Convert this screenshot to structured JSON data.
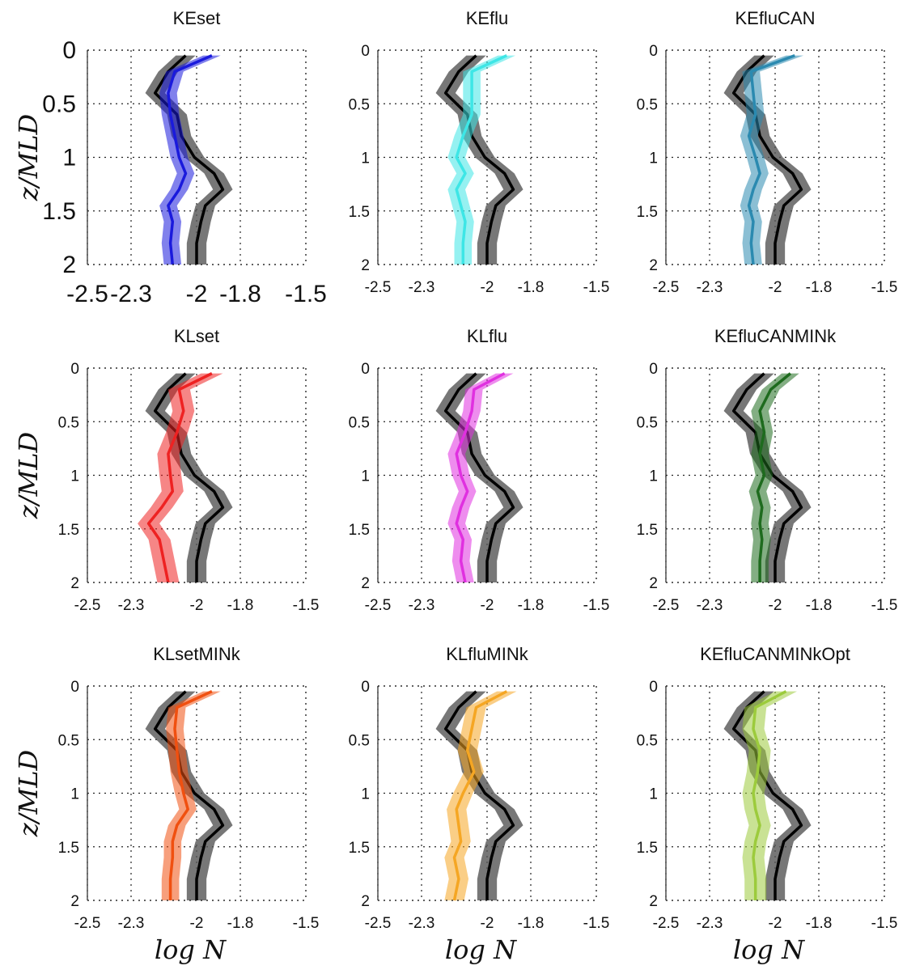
{
  "figure": {
    "ylabel": "z/MLD",
    "xlabel": "log N"
  },
  "chart_data": [
    {
      "type": "line",
      "title": "KEset",
      "xlabel": "",
      "ylabel": "z/MLD",
      "xlim": [
        -2.5,
        -1.5
      ],
      "ylim": [
        0,
        2
      ],
      "y_reversed": true,
      "grid": true,
      "xticks": [
        "-2.5",
        "-2.3",
        "-2",
        "-1.8",
        "-1.5"
      ],
      "yticks": [
        "0",
        "0.5",
        "1",
        "1.5",
        "2"
      ],
      "y": [
        0.05,
        0.2,
        0.4,
        0.6,
        0.8,
        1.0,
        1.15,
        1.3,
        1.45,
        1.6,
        1.8,
        2.0
      ],
      "series": [
        {
          "x": [
            -1.93,
            -2.1,
            -2.13,
            -2.12,
            -2.1,
            -2.08,
            -2.05,
            -2.08,
            -2.13,
            -2.11,
            -2.12,
            -2.11
          ],
          "spread": 0.04,
          "color": "#1a1adc"
        },
        {
          "x": [
            -2.05,
            -2.13,
            -2.19,
            -2.09,
            -2.07,
            -2.01,
            -1.92,
            -1.88,
            -1.96,
            -1.98,
            -2.0,
            -2.0
          ],
          "spread": 0.045,
          "color": "#000000"
        }
      ]
    },
    {
      "type": "line",
      "title": "KEflu",
      "xlabel": "",
      "ylabel": "",
      "xlim": [
        -2.5,
        -1.5
      ],
      "ylim": [
        0,
        2
      ],
      "y_reversed": true,
      "grid": true,
      "xticks": [
        "-2.5",
        "-2.3",
        "-2",
        "-1.8",
        "-1.5"
      ],
      "yticks": [
        "0",
        "0.5",
        "1",
        "1.5",
        "2"
      ],
      "y": [
        0.05,
        0.2,
        0.4,
        0.6,
        0.8,
        1.0,
        1.15,
        1.3,
        1.45,
        1.6,
        1.8,
        2.0
      ],
      "series": [
        {
          "x": [
            -1.91,
            -2.07,
            -2.07,
            -2.07,
            -2.11,
            -2.14,
            -2.1,
            -2.14,
            -2.12,
            -2.1,
            -2.11,
            -2.11
          ],
          "spread": 0.04,
          "color": "#3ee6e6"
        },
        {
          "x": [
            -2.05,
            -2.13,
            -2.19,
            -2.09,
            -2.07,
            -2.01,
            -1.92,
            -1.88,
            -1.96,
            -1.98,
            -2.0,
            -2.0
          ],
          "spread": 0.045,
          "color": "#000000"
        }
      ]
    },
    {
      "type": "line",
      "title": "KEfluCAN",
      "xlabel": "",
      "ylabel": "",
      "xlim": [
        -2.5,
        -1.5
      ],
      "ylim": [
        0,
        2
      ],
      "y_reversed": true,
      "grid": true,
      "xticks": [
        "-2.5",
        "-2.3",
        "-2",
        "-1.8",
        "-1.5"
      ],
      "yticks": [
        "0",
        "0.5",
        "1",
        "1.5",
        "2"
      ],
      "y": [
        0.05,
        0.2,
        0.4,
        0.6,
        0.8,
        1.0,
        1.15,
        1.3,
        1.45,
        1.6,
        1.8,
        2.0
      ],
      "series": [
        {
          "x": [
            -1.91,
            -2.11,
            -2.1,
            -2.09,
            -2.12,
            -2.09,
            -2.07,
            -2.1,
            -2.12,
            -2.1,
            -2.11,
            -2.1
          ],
          "spread": 0.04,
          "color": "#2b8ab0"
        },
        {
          "x": [
            -2.05,
            -2.13,
            -2.19,
            -2.09,
            -2.07,
            -2.01,
            -1.92,
            -1.88,
            -1.96,
            -1.98,
            -2.0,
            -2.0
          ],
          "spread": 0.045,
          "color": "#000000"
        }
      ]
    },
    {
      "type": "line",
      "title": "KLset",
      "xlabel": "",
      "ylabel": "z/MLD",
      "xlim": [
        -2.5,
        -1.5
      ],
      "ylim": [
        0,
        2
      ],
      "y_reversed": true,
      "grid": true,
      "xticks": [
        "-2.5",
        "-2.3",
        "-2",
        "-1.8",
        "-1.5"
      ],
      "yticks": [
        "0",
        "0.5",
        "1",
        "1.5",
        "2"
      ],
      "y": [
        0.05,
        0.2,
        0.4,
        0.6,
        0.8,
        1.0,
        1.15,
        1.3,
        1.45,
        1.6,
        1.8,
        2.0
      ],
      "series": [
        {
          "x": [
            -1.93,
            -2.08,
            -2.06,
            -2.09,
            -2.13,
            -2.12,
            -2.11,
            -2.16,
            -2.22,
            -2.17,
            -2.15,
            -2.13
          ],
          "spread": 0.05,
          "color": "#ee2222"
        },
        {
          "x": [
            -2.05,
            -2.13,
            -2.19,
            -2.09,
            -2.07,
            -2.01,
            -1.92,
            -1.88,
            -1.96,
            -1.98,
            -2.0,
            -2.0
          ],
          "spread": 0.045,
          "color": "#000000"
        }
      ]
    },
    {
      "type": "line",
      "title": "KLflu",
      "xlabel": "",
      "ylabel": "",
      "xlim": [
        -2.5,
        -1.5
      ],
      "ylim": [
        0,
        2
      ],
      "y_reversed": true,
      "grid": true,
      "xticks": [
        "-2.5",
        "-2.3",
        "-2",
        "-1.8",
        "-1.5"
      ],
      "yticks": [
        "0",
        "0.5",
        "1",
        "1.5",
        "2"
      ],
      "y": [
        0.05,
        0.2,
        0.4,
        0.6,
        0.8,
        1.0,
        1.15,
        1.3,
        1.45,
        1.6,
        1.8,
        2.0
      ],
      "series": [
        {
          "x": [
            -1.92,
            -2.06,
            -2.07,
            -2.1,
            -2.14,
            -2.12,
            -2.09,
            -2.12,
            -2.14,
            -2.11,
            -2.12,
            -2.1
          ],
          "spread": 0.04,
          "color": "#e030e0"
        },
        {
          "x": [
            -2.05,
            -2.13,
            -2.19,
            -2.09,
            -2.07,
            -2.01,
            -1.92,
            -1.88,
            -1.96,
            -1.98,
            -2.0,
            -2.0
          ],
          "spread": 0.045,
          "color": "#000000"
        }
      ]
    },
    {
      "type": "line",
      "title": "KEfluCANMINk",
      "xlabel": "",
      "ylabel": "",
      "xlim": [
        -2.5,
        -1.5
      ],
      "ylim": [
        0,
        2
      ],
      "y_reversed": true,
      "grid": true,
      "xticks": [
        "-2.5",
        "-2.3",
        "-2",
        "-1.8",
        "-1.5"
      ],
      "yticks": [
        "0",
        "0.5",
        "1",
        "1.5",
        "2"
      ],
      "y": [
        0.05,
        0.2,
        0.4,
        0.6,
        0.8,
        1.0,
        1.15,
        1.3,
        1.45,
        1.6,
        1.8,
        2.0
      ],
      "series": [
        {
          "x": [
            -1.93,
            -2.02,
            -2.07,
            -2.05,
            -2.07,
            -2.05,
            -2.08,
            -2.06,
            -2.07,
            -2.06,
            -2.07,
            -2.07
          ],
          "spread": 0.04,
          "color": "#1e6b1e"
        },
        {
          "x": [
            -2.05,
            -2.13,
            -2.19,
            -2.09,
            -2.07,
            -2.01,
            -1.92,
            -1.88,
            -1.96,
            -1.98,
            -2.0,
            -2.0
          ],
          "spread": 0.045,
          "color": "#000000"
        }
      ]
    },
    {
      "type": "line",
      "title": "KLsetMINk",
      "xlabel": "log N",
      "ylabel": "z/MLD",
      "xlim": [
        -2.5,
        -1.5
      ],
      "ylim": [
        0,
        2
      ],
      "y_reversed": true,
      "grid": true,
      "xticks": [
        "-2.5",
        "-2.3",
        "-2",
        "-1.8",
        "-1.5"
      ],
      "yticks": [
        "0",
        "0.5",
        "1",
        "1.5",
        "2"
      ],
      "y": [
        0.05,
        0.2,
        0.4,
        0.6,
        0.8,
        1.0,
        1.15,
        1.3,
        1.45,
        1.6,
        1.8,
        2.0
      ],
      "series": [
        {
          "x": [
            -1.93,
            -2.09,
            -2.1,
            -2.09,
            -2.08,
            -2.06,
            -2.04,
            -2.09,
            -2.11,
            -2.11,
            -2.12,
            -2.12
          ],
          "spread": 0.04,
          "color": "#f05010"
        },
        {
          "x": [
            -2.05,
            -2.13,
            -2.19,
            -2.09,
            -2.07,
            -2.01,
            -1.92,
            -1.88,
            -1.96,
            -1.98,
            -2.0,
            -2.0
          ],
          "spread": 0.045,
          "color": "#000000"
        }
      ]
    },
    {
      "type": "line",
      "title": "KLfluMINk",
      "xlabel": "log N",
      "ylabel": "",
      "xlim": [
        -2.5,
        -1.5
      ],
      "ylim": [
        0,
        2
      ],
      "y_reversed": true,
      "grid": true,
      "xticks": [
        "-2.5",
        "-2.3",
        "-2",
        "-1.8",
        "-1.5"
      ],
      "yticks": [
        "0",
        "0.5",
        "1",
        "1.5",
        "2"
      ],
      "y": [
        0.05,
        0.2,
        0.4,
        0.6,
        0.8,
        1.0,
        1.15,
        1.3,
        1.45,
        1.6,
        1.8,
        2.0
      ],
      "series": [
        {
          "x": [
            -1.91,
            -2.05,
            -2.07,
            -2.09,
            -2.06,
            -2.11,
            -2.14,
            -2.13,
            -2.12,
            -2.15,
            -2.13,
            -2.15
          ],
          "spread": 0.045,
          "color": "#f5a623"
        },
        {
          "x": [
            -2.05,
            -2.13,
            -2.19,
            -2.09,
            -2.07,
            -2.01,
            -1.92,
            -1.88,
            -1.96,
            -1.98,
            -2.0,
            -2.0
          ],
          "spread": 0.045,
          "color": "#000000"
        }
      ]
    },
    {
      "type": "line",
      "title": "KEfluCANMINkOpt",
      "xlabel": "log N",
      "ylabel": "",
      "xlim": [
        -2.5,
        -1.5
      ],
      "ylim": [
        0,
        2
      ],
      "y_reversed": true,
      "grid": true,
      "xticks": [
        "-2.5",
        "-2.3",
        "-2",
        "-1.8",
        "-1.5"
      ],
      "yticks": [
        "0",
        "0.5",
        "1",
        "1.5",
        "2"
      ],
      "y": [
        0.05,
        0.2,
        0.4,
        0.6,
        0.8,
        1.0,
        1.15,
        1.3,
        1.45,
        1.6,
        1.8,
        2.0
      ],
      "series": [
        {
          "x": [
            -1.95,
            -2.09,
            -2.1,
            -2.07,
            -2.08,
            -2.1,
            -2.09,
            -2.07,
            -2.09,
            -2.1,
            -2.09,
            -2.09
          ],
          "spread": 0.05,
          "color": "#9ccb3c"
        },
        {
          "x": [
            -2.05,
            -2.13,
            -2.19,
            -2.09,
            -2.07,
            -2.01,
            -1.92,
            -1.88,
            -1.96,
            -1.98,
            -2.0,
            -2.0
          ],
          "spread": 0.045,
          "color": "#000000"
        }
      ]
    }
  ]
}
